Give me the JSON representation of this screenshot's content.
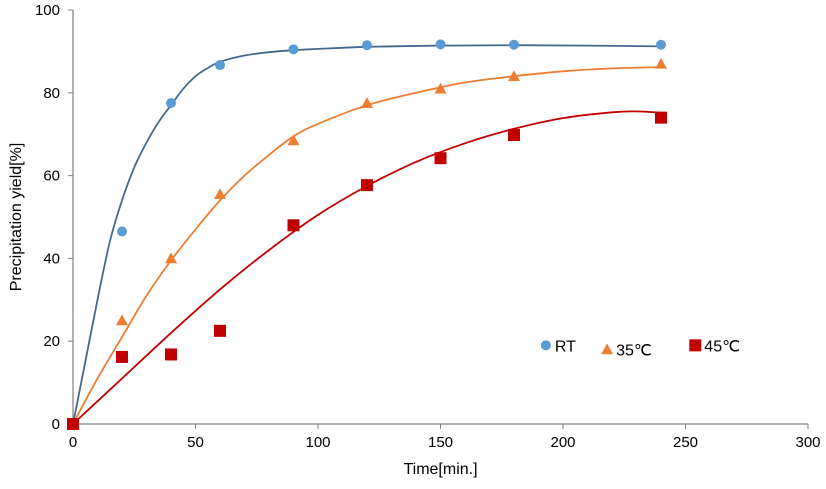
{
  "chart_data": {
    "type": "scatter",
    "title": "",
    "xlabel": "Time[min.]",
    "ylabel": "Precipitation yield[%]",
    "xlim": [
      0,
      300
    ],
    "ylim": [
      0,
      100
    ],
    "xticks": [
      0,
      50,
      100,
      150,
      200,
      250,
      300
    ],
    "yticks": [
      0,
      20,
      40,
      60,
      80,
      100
    ],
    "grid": false,
    "legend_position": "bottom-right",
    "series": [
      {
        "name": "RT",
        "marker": "circle",
        "color": "#5B9BD5",
        "line_color": "#44698F",
        "x": [
          0,
          20,
          40,
          60,
          90,
          120,
          150,
          180,
          240
        ],
        "values": [
          0,
          46.5,
          77.5,
          86.7,
          90.5,
          91.5,
          91.7,
          91.6,
          91.6
        ],
        "fit_x": [
          0,
          5,
          10,
          15,
          20,
          25,
          30,
          35,
          40,
          45,
          50,
          55,
          60,
          70,
          80,
          90,
          100,
          120,
          150,
          180,
          210,
          240
        ],
        "fit_y": [
          0,
          15,
          30,
          44,
          54,
          62,
          68,
          73,
          77,
          81,
          84,
          86,
          87.5,
          89,
          89.8,
          90.3,
          90.6,
          91.1,
          91.4,
          91.5,
          91.4,
          91.2
        ]
      },
      {
        "name": "35℃",
        "marker": "triangle",
        "color": "#ED7D31",
        "line_color": "#ED7D31",
        "x": [
          0,
          20,
          40,
          60,
          90,
          120,
          150,
          180,
          240
        ],
        "values": [
          0,
          25,
          40,
          55.5,
          68.5,
          77.5,
          81,
          84,
          87
        ],
        "fit_x": [
          0,
          10,
          20,
          30,
          40,
          50,
          60,
          70,
          80,
          90,
          100,
          120,
          140,
          160,
          180,
          200,
          220,
          240
        ],
        "fit_y": [
          0,
          11,
          21,
          31,
          39.5,
          47,
          54,
          60,
          65,
          69.5,
          72.5,
          77,
          80,
          82.5,
          84,
          85.2,
          85.9,
          86.2
        ]
      },
      {
        "name": "45℃",
        "marker": "square",
        "color": "#C00000",
        "line_color": "#C00000",
        "x": [
          0,
          20,
          40,
          60,
          90,
          120,
          150,
          180,
          240
        ],
        "values": [
          0,
          16.2,
          16.8,
          22.5,
          48,
          57.7,
          64.2,
          69.8,
          74
        ],
        "fit_x": [
          0,
          20,
          40,
          60,
          80,
          100,
          120,
          140,
          160,
          180,
          200,
          220,
          230,
          240
        ],
        "fit_y": [
          0,
          11,
          22,
          32.5,
          42,
          50.5,
          57.5,
          63.3,
          67.8,
          71.3,
          73.9,
          75.3,
          75.5,
          75.2
        ]
      }
    ]
  }
}
